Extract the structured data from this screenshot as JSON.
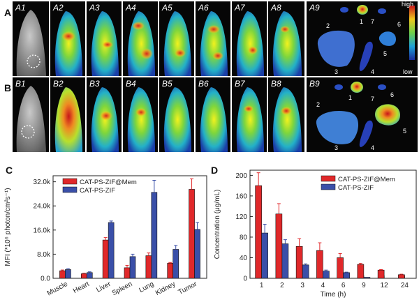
{
  "panels": {
    "A": "A",
    "B": "B",
    "C": "C",
    "D": "D"
  },
  "row_a": {
    "labels": [
      "A1",
      "A2",
      "A3",
      "A4",
      "A5",
      "A6",
      "A7",
      "A8",
      "A9"
    ],
    "organ_numbers": [
      "1",
      "2",
      "3",
      "4",
      "5",
      "6",
      "7"
    ],
    "colorbar_high": "high",
    "colorbar_low": "low"
  },
  "row_b": {
    "labels": [
      "B1",
      "B2",
      "B3",
      "B4",
      "B5",
      "B6",
      "B7",
      "B8",
      "B9"
    ],
    "organ_numbers": [
      "1",
      "2",
      "3",
      "4",
      "5",
      "6",
      "7"
    ]
  },
  "colors": {
    "red_series": "#e0282a",
    "blue_series": "#3a4fa8",
    "image_bg": "#060606"
  },
  "chart_data": [
    {
      "type": "bar",
      "panel": "C",
      "ylabel": "MFI (*10⁶ photon/cm²s⁻¹)",
      "ylim": [
        0,
        34000
      ],
      "yticks": [
        0,
        8000,
        16000,
        24000,
        32000
      ],
      "ytick_labels": [
        "0.0",
        "8.0k",
        "16.0k",
        "24.0k",
        "32.0k"
      ],
      "categories": [
        "Muscle",
        "Heart",
        "Liver",
        "Spleen",
        "Lung",
        "Kidney",
        "Tumor"
      ],
      "series": [
        {
          "name": "CAT-PS-ZIF@Mem",
          "color": "#e0282a",
          "values": [
            2500,
            1500,
            12700,
            3500,
            7500,
            5000,
            29500
          ],
          "errors": [
            250,
            200,
            800,
            800,
            900,
            250,
            3500
          ]
        },
        {
          "name": "CAT-PS-ZIF",
          "color": "#3a4fa8",
          "values": [
            2900,
            1900,
            18500,
            7200,
            28500,
            9600,
            16200
          ],
          "errors": [
            300,
            250,
            500,
            800,
            4000,
            1300,
            2300
          ]
        }
      ],
      "legend_position": "top-left"
    },
    {
      "type": "bar",
      "panel": "D",
      "ylabel": "Concentration (μg/mL)",
      "xlabel": "Time (h)",
      "ylim": [
        0,
        210
      ],
      "yticks": [
        0,
        40,
        80,
        120,
        160,
        200
      ],
      "ytick_labels": [
        "0",
        "40",
        "80",
        "120",
        "160",
        "200"
      ],
      "categories": [
        "1",
        "2",
        "3",
        "4",
        "6",
        "9",
        "12",
        "24"
      ],
      "series": [
        {
          "name": "CAT-PS-ZIF@Mem",
          "color": "#e0282a",
          "values": [
            180,
            125,
            62,
            54,
            40,
            27,
            16,
            7
          ],
          "errors": [
            25,
            20,
            15,
            15,
            8,
            2,
            1,
            1
          ]
        },
        {
          "name": "CAT-PS-ZIF",
          "color": "#3a4fa8",
          "values": [
            88,
            67,
            26,
            14,
            11,
            2,
            0,
            0
          ],
          "errors": [
            17,
            8,
            2,
            2,
            1,
            0,
            0,
            0
          ]
        }
      ],
      "legend_position": "top-right"
    }
  ]
}
